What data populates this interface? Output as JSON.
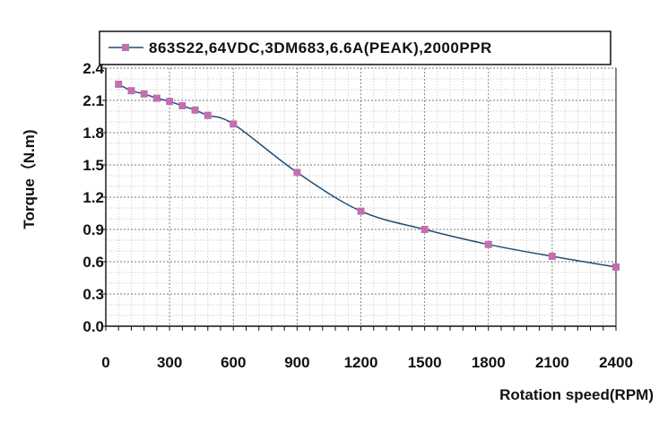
{
  "chart_data": {
    "type": "line",
    "title": "",
    "xlabel": "Rotation speed(RPM)",
    "ylabel": "Torque（N.m)",
    "xlim": [
      0,
      2400
    ],
    "ylim": [
      0.0,
      2.4
    ],
    "x_ticks": [
      0,
      300,
      600,
      900,
      1200,
      1500,
      1800,
      2100,
      2400
    ],
    "x_tick_labels": [
      "0",
      "300",
      "600",
      "900",
      "1200",
      "1500",
      "1800",
      "2100",
      "2400"
    ],
    "y_ticks": [
      0.0,
      0.3,
      0.6,
      0.9,
      1.2,
      1.5,
      1.8,
      2.1,
      2.4
    ],
    "y_tick_labels": [
      "0.0",
      "0.3",
      "0.6",
      "0.9",
      "1.2",
      "1.5",
      "1.8",
      "2.1",
      "2.4"
    ],
    "grid": true,
    "legend_position": "top",
    "series": [
      {
        "name": "863S22,64VDC,3DM683,6.6A(PEAK),2000PPR",
        "line_color": "#1f4e79",
        "marker_color": "#c26fb0",
        "x": [
          60,
          120,
          180,
          240,
          300,
          360,
          420,
          480,
          600,
          900,
          1200,
          1500,
          1800,
          2100,
          2400
        ],
        "y": [
          2.25,
          2.19,
          2.16,
          2.12,
          2.09,
          2.05,
          2.01,
          1.96,
          1.88,
          1.43,
          1.07,
          0.9,
          0.76,
          0.65,
          0.55
        ]
      }
    ]
  }
}
